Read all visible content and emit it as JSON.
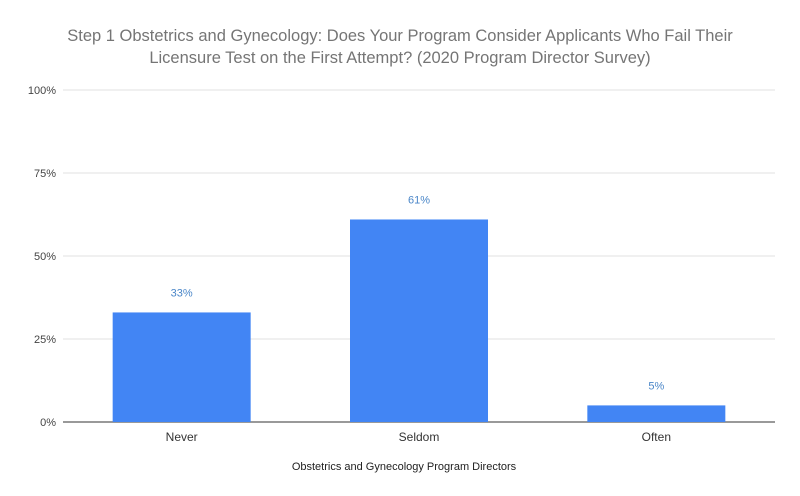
{
  "chart_data": {
    "type": "bar",
    "title_lines": [
      "Step 1 Obstetrics and Gynecology: Does Your Program Consider Applicants Who Fail Their",
      "Licensure Test on the First Attempt? (2020 Program Director Survey)"
    ],
    "categories": [
      "Never",
      "Seldom",
      "Often"
    ],
    "values": [
      33,
      61,
      5
    ],
    "data_labels": [
      "33%",
      "61%",
      "5%"
    ],
    "xlabel": "Obstetrics and Gynecology Program Directors",
    "ylabel": "",
    "ylim": [
      0,
      100
    ],
    "y_ticks": [
      0,
      25,
      50,
      75,
      100
    ],
    "y_tick_labels": [
      "0%",
      "25%",
      "50%",
      "75%",
      "100%"
    ],
    "grid": true,
    "legend": "none",
    "colors": {
      "bar": "#4285f4",
      "data_label": "#4a86c8",
      "title": "#757575",
      "grid": "#e0e0e0"
    }
  }
}
